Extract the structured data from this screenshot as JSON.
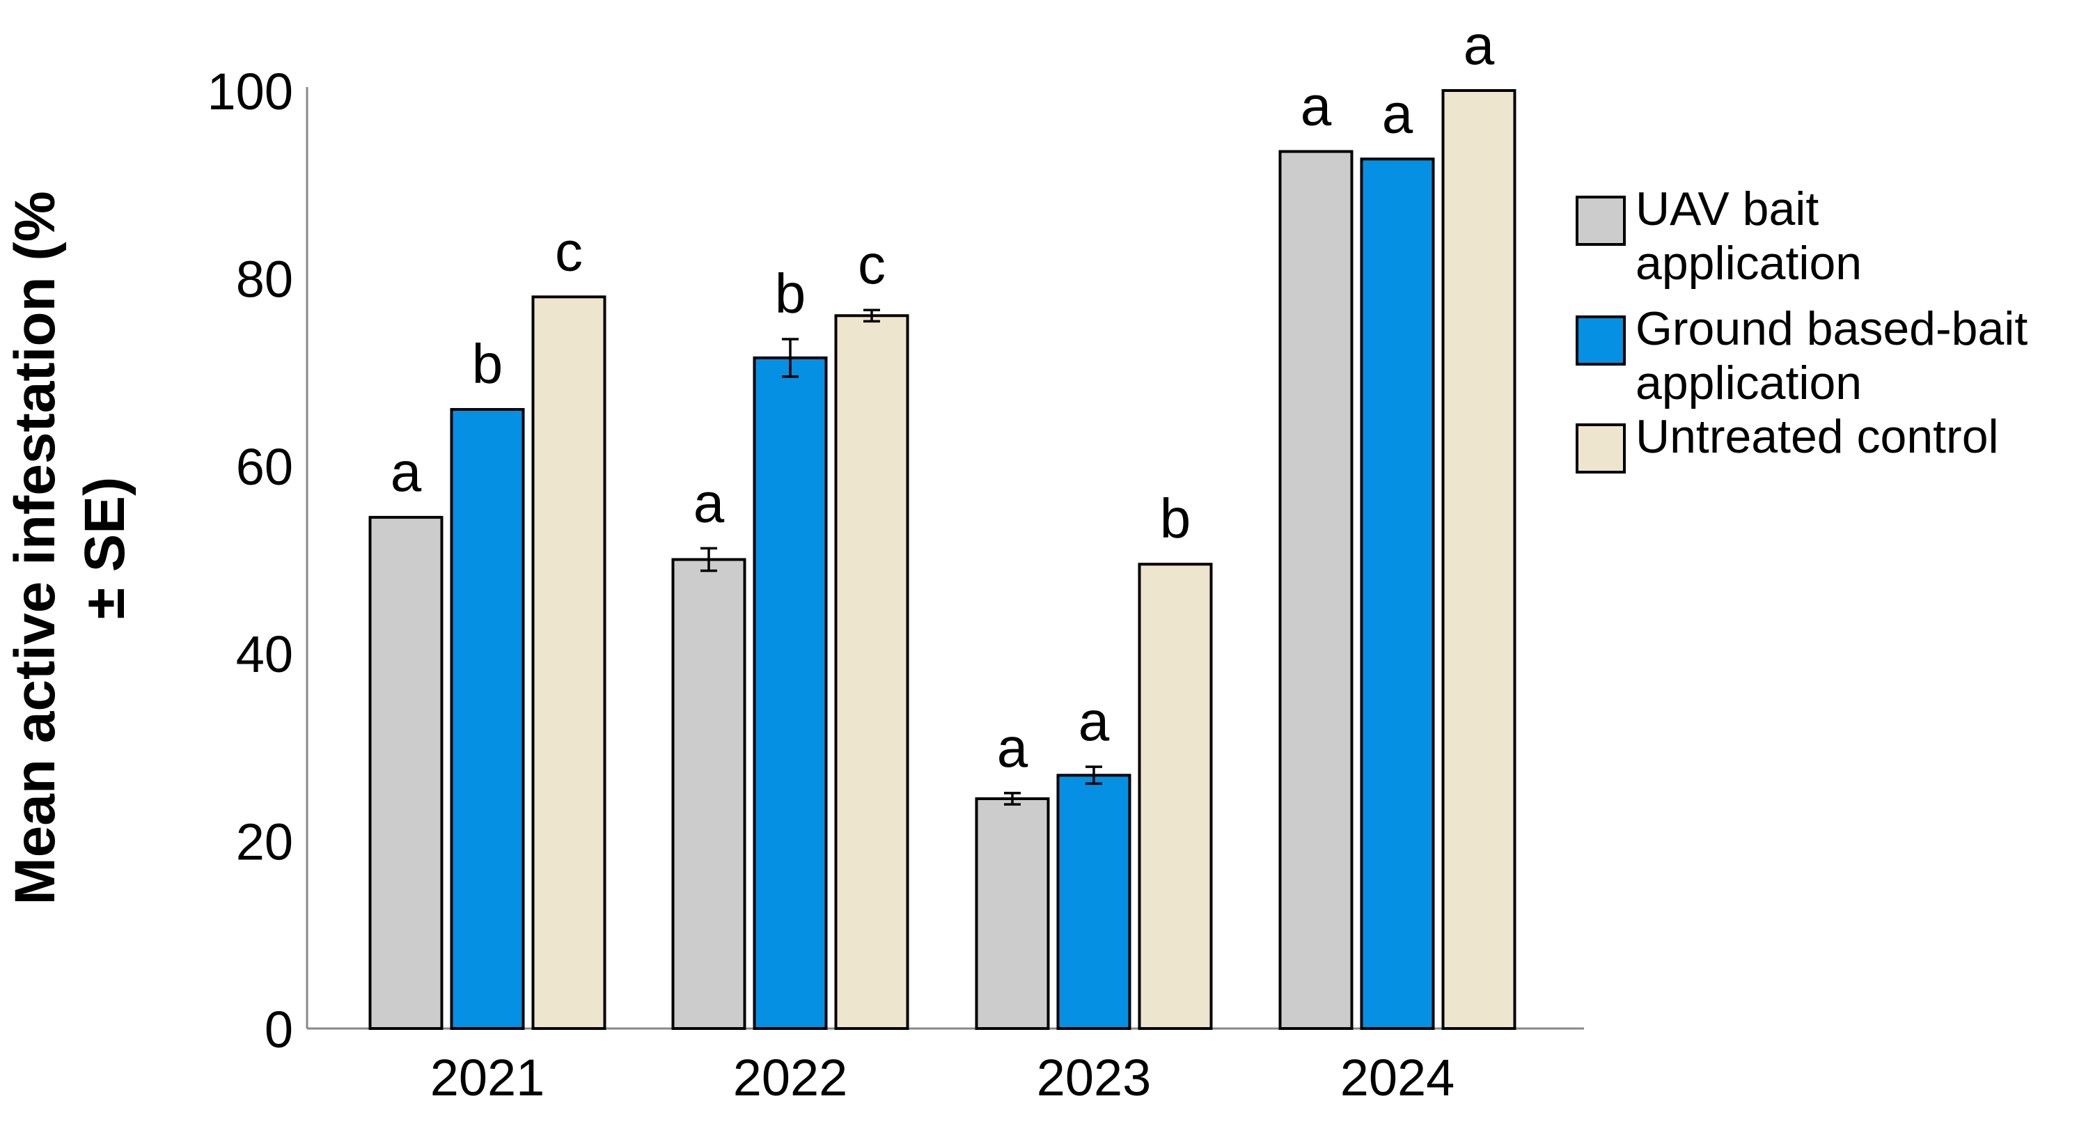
{
  "chart_data": {
    "type": "bar",
    "title": "",
    "xlabel": "",
    "ylabel_line1": "Mean active infestation (%",
    "ylabel_line2": "± SE)",
    "ylim": [
      0,
      100
    ],
    "yticks": [
      "0",
      "20",
      "40",
      "60",
      "80",
      "100"
    ],
    "grid": false,
    "legend_position": "right",
    "categories": [
      "2021",
      "2022",
      "2023",
      "2024"
    ],
    "series": [
      {
        "name": "UAV bait application",
        "legend_lines": [
          "UAV bait",
          "application"
        ],
        "color": "#cccccc",
        "values": [
          54.5,
          50.0,
          24.5,
          93.5
        ],
        "errors": [
          0,
          1.2,
          0.6,
          0
        ],
        "letters": [
          "a",
          "a",
          "a",
          "a"
        ]
      },
      {
        "name": "Ground based-bait application",
        "legend_lines": [
          "Ground based-bait",
          "application"
        ],
        "color": "#0590e3",
        "values": [
          66.0,
          71.5,
          27.0,
          92.7
        ],
        "errors": [
          0,
          2.0,
          0.9,
          0
        ],
        "letters": [
          "b",
          "b",
          "a",
          "a"
        ]
      },
      {
        "name": "Untreated control",
        "legend_lines": [
          "Untreated control"
        ],
        "color": "#eee5cf",
        "values": [
          78.0,
          76.0,
          49.5,
          100.0
        ],
        "errors": [
          0,
          0.6,
          0,
          0
        ],
        "letters": [
          "c",
          "c",
          "b",
          "a"
        ]
      }
    ]
  }
}
